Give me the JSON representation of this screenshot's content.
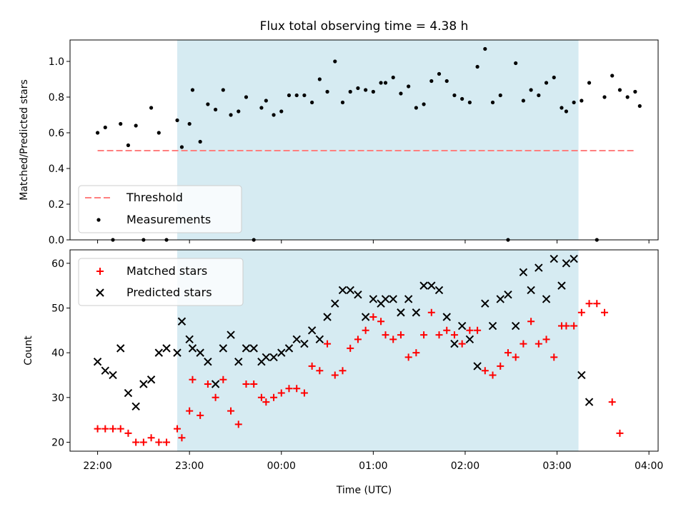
{
  "chart_data": [
    {
      "type": "scatter",
      "title": "Flux total observing time = 4.38 h",
      "ylabel": "Matched/Predicted stars",
      "xlabel": "",
      "xlim": [
        "21:42",
        "04:06"
      ],
      "ylim": [
        0,
        1.12
      ],
      "y_ticks": [
        0.0,
        0.2,
        0.4,
        0.6,
        0.8,
        1.0
      ],
      "y_tick_labels": [
        "0.0",
        "0.2",
        "0.4",
        "0.6",
        "0.8",
        "1.0"
      ],
      "shaded_interval": [
        "22:52",
        "03:14"
      ],
      "shade_color": "#add8e6",
      "legend_position": "lower-left",
      "legend": [
        "Threshold",
        "Measurements"
      ],
      "threshold": {
        "name": "Threshold",
        "y": 0.5,
        "x": [
          "22:00",
          "03:50"
        ],
        "color": "#ff7f7f",
        "style": "dashed"
      },
      "series": [
        {
          "name": "Measurements",
          "color": "#000000",
          "points": [
            [
              "22:00",
              0.6
            ],
            [
              "22:05",
              0.63
            ],
            [
              "22:10",
              0.0
            ],
            [
              "22:15",
              0.65
            ],
            [
              "22:20",
              0.53
            ],
            [
              "22:25",
              0.64
            ],
            [
              "22:30",
              0.0
            ],
            [
              "22:35",
              0.74
            ],
            [
              "22:40",
              0.6
            ],
            [
              "22:45",
              0.0
            ],
            [
              "22:52",
              0.67
            ],
            [
              "22:55",
              0.52
            ],
            [
              "23:00",
              0.65
            ],
            [
              "23:02",
              0.84
            ],
            [
              "23:07",
              0.55
            ],
            [
              "23:12",
              0.76
            ],
            [
              "23:17",
              0.73
            ],
            [
              "23:22",
              0.84
            ],
            [
              "23:27",
              0.7
            ],
            [
              "23:32",
              0.72
            ],
            [
              "23:37",
              0.8
            ],
            [
              "23:42",
              0.0
            ],
            [
              "23:47",
              0.74
            ],
            [
              "23:50",
              0.78
            ],
            [
              "23:55",
              0.7
            ],
            [
              "00:00",
              0.72
            ],
            [
              "00:05",
              0.81
            ],
            [
              "00:10",
              0.81
            ],
            [
              "00:15",
              0.81
            ],
            [
              "00:20",
              0.77
            ],
            [
              "00:25",
              0.9
            ],
            [
              "00:30",
              0.83
            ],
            [
              "00:35",
              1.0
            ],
            [
              "00:40",
              0.77
            ],
            [
              "00:45",
              0.83
            ],
            [
              "00:50",
              0.85
            ],
            [
              "00:55",
              0.84
            ],
            [
              "01:00",
              0.83
            ],
            [
              "01:05",
              0.88
            ],
            [
              "01:08",
              0.88
            ],
            [
              "01:13",
              0.91
            ],
            [
              "01:18",
              0.82
            ],
            [
              "01:23",
              0.86
            ],
            [
              "01:28",
              0.74
            ],
            [
              "01:33",
              0.76
            ],
            [
              "01:38",
              0.89
            ],
            [
              "01:43",
              0.93
            ],
            [
              "01:48",
              0.89
            ],
            [
              "01:53",
              0.81
            ],
            [
              "01:58",
              0.79
            ],
            [
              "02:03",
              0.77
            ],
            [
              "02:08",
              0.97
            ],
            [
              "02:13",
              1.07
            ],
            [
              "02:18",
              0.77
            ],
            [
              "02:23",
              0.81
            ],
            [
              "02:28",
              0.0
            ],
            [
              "02:33",
              0.99
            ],
            [
              "02:38",
              0.78
            ],
            [
              "02:43",
              0.84
            ],
            [
              "02:48",
              0.81
            ],
            [
              "02:53",
              0.88
            ],
            [
              "02:58",
              0.91
            ],
            [
              "03:03",
              0.74
            ],
            [
              "03:06",
              0.72
            ],
            [
              "03:11",
              0.77
            ],
            [
              "03:16",
              0.78
            ],
            [
              "03:21",
              0.88
            ],
            [
              "03:26",
              0.0
            ],
            [
              "03:31",
              0.8
            ],
            [
              "03:36",
              0.92
            ],
            [
              "03:41",
              0.84
            ],
            [
              "03:46",
              0.8
            ],
            [
              "03:51",
              0.83
            ],
            [
              "03:54",
              0.75
            ]
          ]
        }
      ]
    },
    {
      "type": "scatter",
      "title": "",
      "ylabel": "Count",
      "xlabel": "Time (UTC)",
      "xlim": [
        "21:42",
        "04:06"
      ],
      "ylim": [
        18,
        63
      ],
      "y_ticks": [
        20,
        30,
        40,
        50,
        60
      ],
      "y_tick_labels": [
        "20",
        "30",
        "40",
        "50",
        "60"
      ],
      "x_ticks": [
        "22:00",
        "23:00",
        "00:00",
        "01:00",
        "02:00",
        "03:00",
        "04:00"
      ],
      "x_tick_labels": [
        "22:00",
        "23:00",
        "00:00",
        "01:00",
        "02:00",
        "03:00",
        "04:00"
      ],
      "shaded_interval": [
        "22:52",
        "03:14"
      ],
      "shade_color": "#add8e6",
      "legend_position": "upper-left",
      "legend": [
        "Matched stars",
        "Predicted stars"
      ],
      "series": [
        {
          "name": "Matched stars",
          "marker": "plus",
          "color": "#ff0000",
          "points": [
            [
              "22:00",
              23
            ],
            [
              "22:05",
              23
            ],
            [
              "22:10",
              23
            ],
            [
              "22:15",
              23
            ],
            [
              "22:20",
              22
            ],
            [
              "22:25",
              20
            ],
            [
              "22:30",
              20
            ],
            [
              "22:35",
              21
            ],
            [
              "22:40",
              20
            ],
            [
              "22:45",
              20
            ],
            [
              "22:52",
              23
            ],
            [
              "22:55",
              21
            ],
            [
              "23:00",
              27
            ],
            [
              "23:02",
              34
            ],
            [
              "23:07",
              26
            ],
            [
              "23:12",
              33
            ],
            [
              "23:17",
              30
            ],
            [
              "23:22",
              34
            ],
            [
              "23:27",
              27
            ],
            [
              "23:32",
              24
            ],
            [
              "23:37",
              33
            ],
            [
              "23:42",
              33
            ],
            [
              "23:47",
              30
            ],
            [
              "23:50",
              29
            ],
            [
              "23:55",
              30
            ],
            [
              "00:00",
              31
            ],
            [
              "00:05",
              32
            ],
            [
              "00:10",
              32
            ],
            [
              "00:15",
              31
            ],
            [
              "00:20",
              37
            ],
            [
              "00:25",
              36
            ],
            [
              "00:30",
              42
            ],
            [
              "00:35",
              35
            ],
            [
              "00:40",
              36
            ],
            [
              "00:45",
              41
            ],
            [
              "00:50",
              43
            ],
            [
              "00:55",
              45
            ],
            [
              "01:00",
              48
            ],
            [
              "01:05",
              47
            ],
            [
              "01:08",
              44
            ],
            [
              "01:13",
              43
            ],
            [
              "01:18",
              44
            ],
            [
              "01:23",
              39
            ],
            [
              "01:28",
              40
            ],
            [
              "01:33",
              44
            ],
            [
              "01:38",
              49
            ],
            [
              "01:43",
              44
            ],
            [
              "01:48",
              45
            ],
            [
              "01:53",
              44
            ],
            [
              "01:58",
              42
            ],
            [
              "02:03",
              45
            ],
            [
              "02:08",
              45
            ],
            [
              "02:13",
              36
            ],
            [
              "02:18",
              35
            ],
            [
              "02:23",
              37
            ],
            [
              "02:28",
              40
            ],
            [
              "02:33",
              39
            ],
            [
              "02:38",
              42
            ],
            [
              "02:43",
              47
            ],
            [
              "02:48",
              42
            ],
            [
              "02:53",
              43
            ],
            [
              "02:58",
              39
            ],
            [
              "03:03",
              46
            ],
            [
              "03:06",
              46
            ],
            [
              "03:11",
              46
            ],
            [
              "03:16",
              49
            ],
            [
              "03:21",
              51
            ],
            [
              "03:26",
              51
            ],
            [
              "03:31",
              49
            ],
            [
              "03:36",
              29
            ],
            [
              "03:41",
              22
            ]
          ]
        },
        {
          "name": "Predicted stars",
          "marker": "x",
          "color": "#000000",
          "points": [
            [
              "22:00",
              38
            ],
            [
              "22:05",
              36
            ],
            [
              "22:10",
              35
            ],
            [
              "22:15",
              41
            ],
            [
              "22:20",
              31
            ],
            [
              "22:25",
              28
            ],
            [
              "22:30",
              33
            ],
            [
              "22:35",
              34
            ],
            [
              "22:40",
              40
            ],
            [
              "22:45",
              41
            ],
            [
              "22:52",
              40
            ],
            [
              "22:55",
              47
            ],
            [
              "23:00",
              43
            ],
            [
              "23:02",
              41
            ],
            [
              "23:07",
              40
            ],
            [
              "23:12",
              38
            ],
            [
              "23:17",
              33
            ],
            [
              "23:22",
              41
            ],
            [
              "23:27",
              44
            ],
            [
              "23:32",
              38
            ],
            [
              "23:37",
              41
            ],
            [
              "23:42",
              41
            ],
            [
              "23:47",
              38
            ],
            [
              "23:50",
              39
            ],
            [
              "23:55",
              39
            ],
            [
              "00:00",
              40
            ],
            [
              "00:05",
              41
            ],
            [
              "00:10",
              43
            ],
            [
              "00:15",
              42
            ],
            [
              "00:20",
              45
            ],
            [
              "00:25",
              43
            ],
            [
              "00:30",
              48
            ],
            [
              "00:35",
              51
            ],
            [
              "00:40",
              54
            ],
            [
              "00:45",
              54
            ],
            [
              "00:50",
              53
            ],
            [
              "00:55",
              48
            ],
            [
              "01:00",
              52
            ],
            [
              "01:05",
              51
            ],
            [
              "01:08",
              52
            ],
            [
              "01:13",
              52
            ],
            [
              "01:18",
              49
            ],
            [
              "01:23",
              52
            ],
            [
              "01:28",
              49
            ],
            [
              "01:33",
              55
            ],
            [
              "01:38",
              55
            ],
            [
              "01:43",
              54
            ],
            [
              "01:48",
              48
            ],
            [
              "01:53",
              42
            ],
            [
              "01:58",
              46
            ],
            [
              "02:03",
              43
            ],
            [
              "02:08",
              37
            ],
            [
              "02:13",
              51
            ],
            [
              "02:18",
              46
            ],
            [
              "02:23",
              52
            ],
            [
              "02:28",
              53
            ],
            [
              "02:33",
              46
            ],
            [
              "02:38",
              58
            ],
            [
              "02:43",
              54
            ],
            [
              "02:48",
              59
            ],
            [
              "02:53",
              52
            ],
            [
              "02:58",
              61
            ],
            [
              "03:03",
              55
            ],
            [
              "03:06",
              60
            ],
            [
              "03:11",
              61
            ],
            [
              "03:16",
              35
            ],
            [
              "03:21",
              29
            ]
          ]
        }
      ]
    }
  ]
}
